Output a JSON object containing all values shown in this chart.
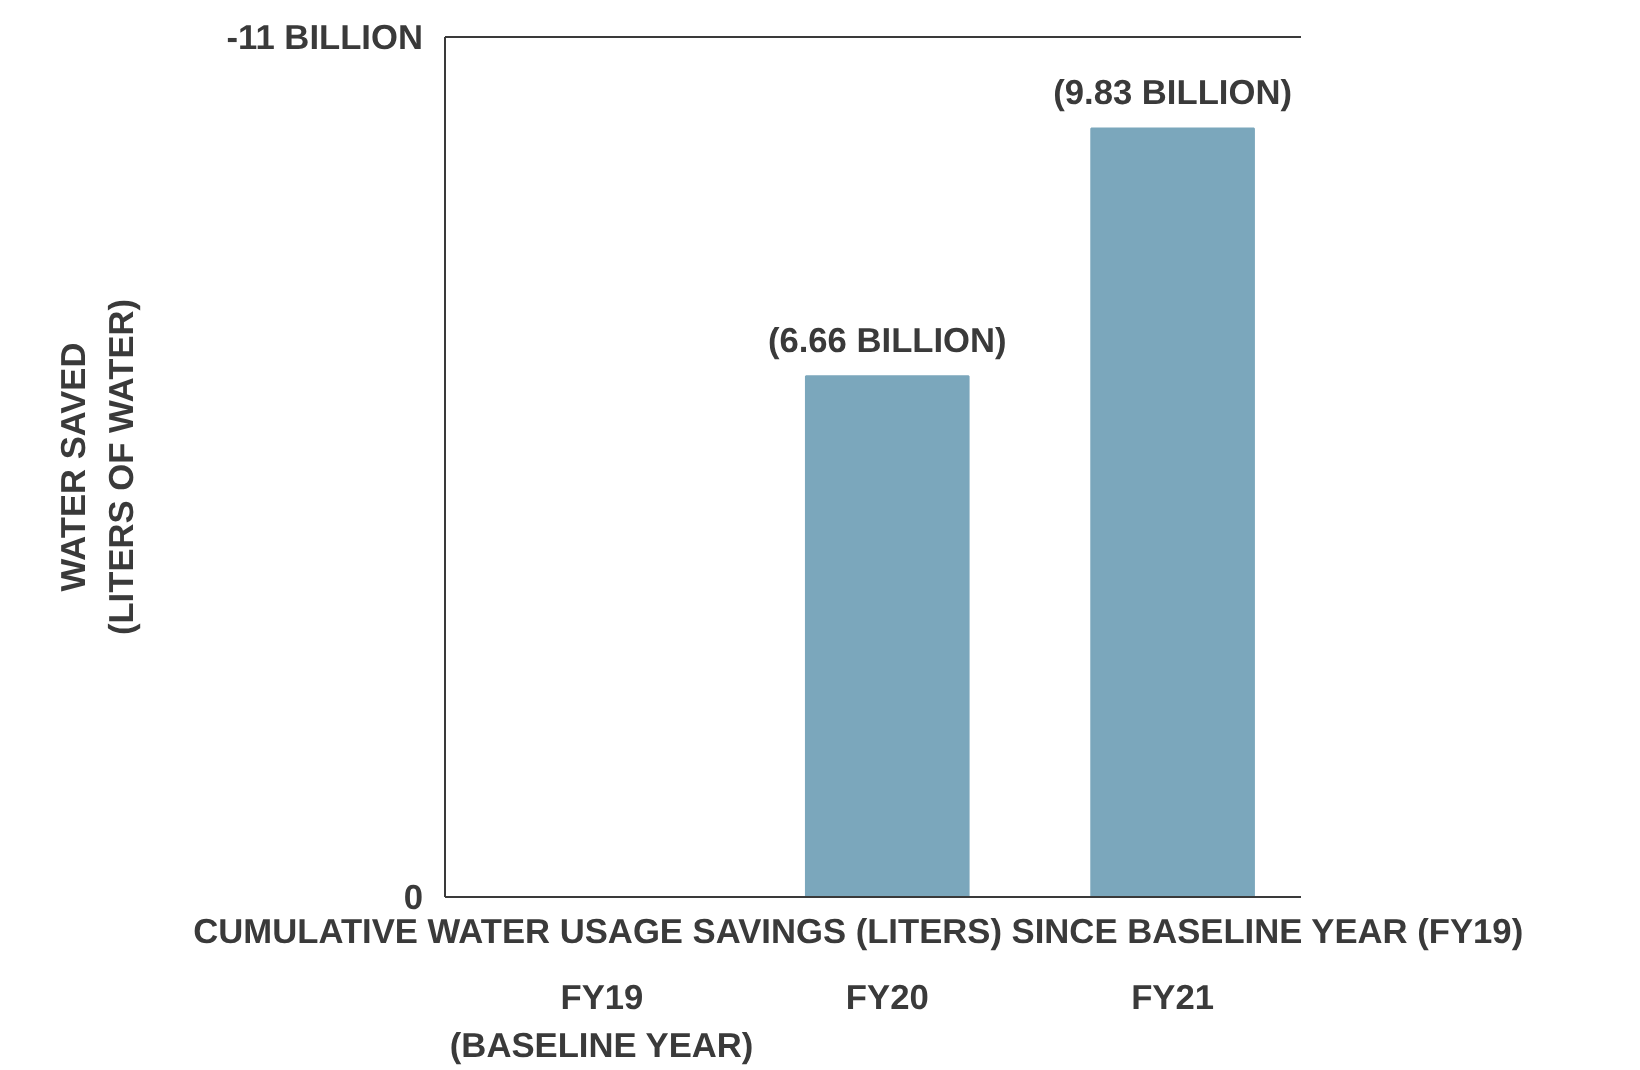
{
  "chart_data": {
    "type": "bar",
    "xlabel": "CUMULATIVE  WATER USAGE  SAVINGS (LITERS)  SINCE BASELINE YEAR (FY19)",
    "ylabel": "WATER SAVED\n(LITERS OF WATER)",
    "categories": [
      "FY19\n(BASELINE YEAR)",
      "FY20",
      "FY21"
    ],
    "values": [
      0,
      -6.66,
      -9.83
    ],
    "value_labels": [
      null,
      "(6.66 BILLION)",
      "(9.83 BILLION)"
    ],
    "color": "#7ba7bc",
    "ylim": [
      0,
      -11
    ],
    "yticks": [
      {
        "value": -11,
        "label": "-11 BILLION"
      },
      0
    ],
    "grid": false
  }
}
